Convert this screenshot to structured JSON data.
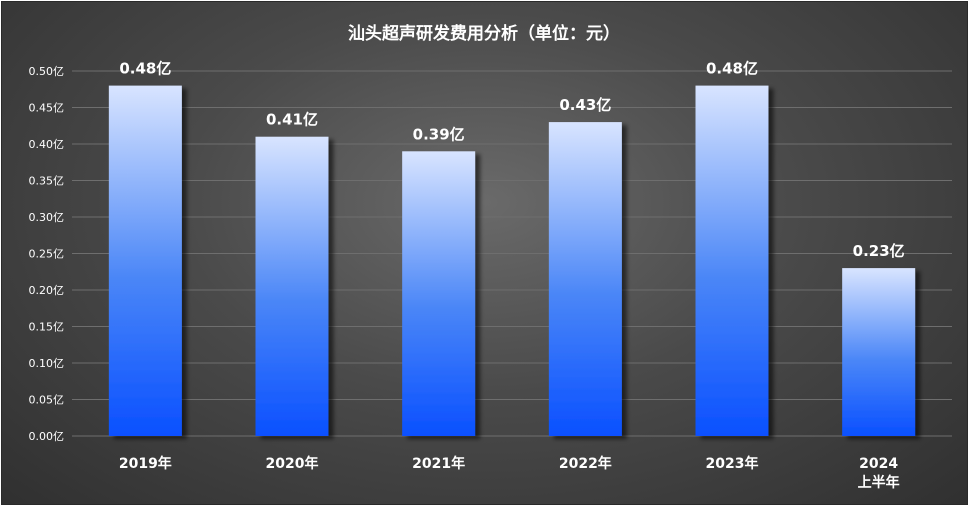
{
  "chart_data": {
    "type": "bar",
    "title": "汕头超声研发费用分析（单位：元）",
    "xlabel": "",
    "ylabel": "",
    "categories": [
      "2019年",
      "2020年",
      "2021年",
      "2022年",
      "2023年",
      "2024\n上半年"
    ],
    "values": [
      0.48,
      0.41,
      0.39,
      0.43,
      0.48,
      0.23
    ],
    "data_labels": [
      "0.48亿",
      "0.41亿",
      "0.39亿",
      "0.43亿",
      "0.48亿",
      "0.23亿"
    ],
    "ylim": [
      0,
      0.5
    ],
    "yticks": [
      0,
      0.05,
      0.1,
      0.15,
      0.2,
      0.25,
      0.3,
      0.35,
      0.4,
      0.45,
      0.5
    ],
    "ytick_labels": [
      "0.00亿",
      "0.05亿",
      "0.10亿",
      "0.15亿",
      "0.20亿",
      "0.25亿",
      "0.30亿",
      "0.35亿",
      "0.40亿",
      "0.45亿",
      "0.50亿"
    ],
    "grid": true,
    "legend": "none",
    "colors": {
      "bar_top": "#d8e4ff",
      "bar_mid": "#4a86f7",
      "bar_bottom": "#0a50ff",
      "background": "#4a4a4a",
      "text": "#ffffff",
      "grid": "#6e6e6e"
    }
  }
}
